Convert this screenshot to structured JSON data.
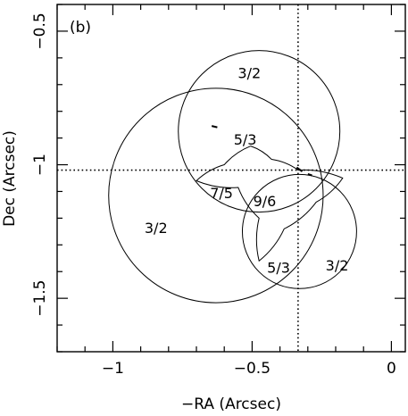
{
  "chart_data": {
    "type": "scatter",
    "panel_label": "(b)",
    "xlabel": "−RA (Arcsec)",
    "ylabel": "Dec (Arcsec)",
    "xlim": [
      -1.2,
      0.05
    ],
    "ylim": [
      -1.7,
      -0.4
    ],
    "x_inverted": false,
    "grid": false,
    "x_ticks": [
      {
        "value": -1,
        "label": "−1"
      },
      {
        "value": -0.5,
        "label": "−0.5"
      },
      {
        "value": 0,
        "label": "0"
      }
    ],
    "y_ticks": [
      {
        "value": -0.5,
        "label": "−0.5"
      },
      {
        "value": -1,
        "label": "−1"
      },
      {
        "value": -1.5,
        "label": "−1.5"
      }
    ],
    "reference_lines": {
      "vertical_x": -0.335,
      "horizontal_y": -1.02
    },
    "circles": [
      {
        "cx": -0.475,
        "cy": -0.875,
        "r": 0.29
      },
      {
        "cx": -0.63,
        "cy": -1.115,
        "r": 0.385
      },
      {
        "cx": -0.33,
        "cy": -1.25,
        "r": 0.205
      }
    ],
    "caustic": [
      [
        -0.505,
        -0.93
      ],
      [
        -0.43,
        -0.98
      ],
      [
        -0.335,
        -1.02
      ],
      [
        -0.175,
        -1.05
      ],
      [
        -0.27,
        -1.14
      ],
      [
        -0.385,
        -1.24
      ],
      [
        -0.475,
        -1.36
      ],
      [
        -0.475,
        -1.2
      ],
      [
        -0.55,
        -1.085
      ],
      [
        -0.7,
        -1.06
      ],
      [
        -0.6,
        -1.0
      ],
      [
        -0.505,
        -0.93
      ]
    ],
    "small_marks": [
      {
        "x": [
          -0.645,
          -0.625
        ],
        "y": [
          -0.855,
          -0.86
        ]
      },
      {
        "x": [
          -0.34,
          -0.32
        ],
        "y": [
          -1.01,
          -1.025
        ]
      },
      {
        "x": [
          -0.3,
          -0.285
        ],
        "y": [
          -1.035,
          -1.04
        ]
      }
    ],
    "region_labels": [
      {
        "text": "3/2",
        "x": -0.51,
        "y": -0.655
      },
      {
        "text": "5/3",
        "x": -0.525,
        "y": -0.905
      },
      {
        "text": "7/5",
        "x": -0.61,
        "y": -1.105
      },
      {
        "text": "9/6",
        "x": -0.455,
        "y": -1.135
      },
      {
        "text": "3/2",
        "x": -0.845,
        "y": -1.235
      },
      {
        "text": "5/3",
        "x": -0.405,
        "y": -1.385
      },
      {
        "text": "3/2",
        "x": -0.195,
        "y": -1.375
      }
    ]
  }
}
